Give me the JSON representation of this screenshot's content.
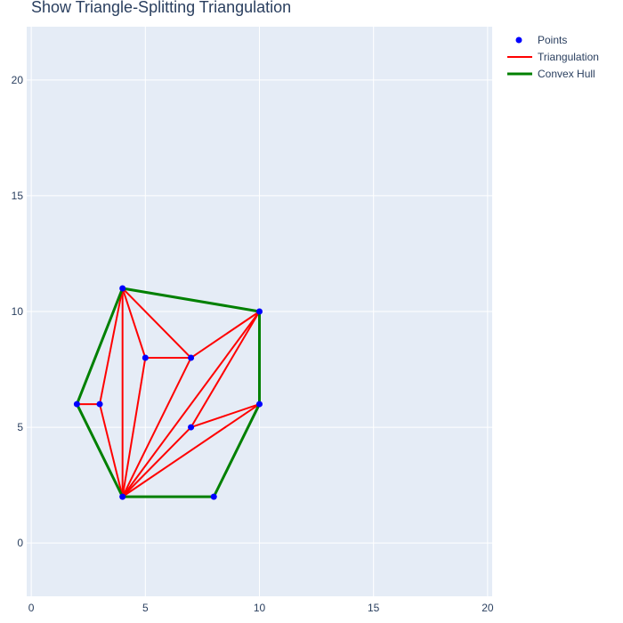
{
  "chart_data": {
    "type": "scatter",
    "title": "Show Triangle-Splitting Triangulation",
    "xlabel": "",
    "ylabel": "",
    "xlim": [
      -0.2,
      20.2
    ],
    "ylim": [
      -2.3,
      22.3
    ],
    "x_ticks": [
      0,
      5,
      10,
      15,
      20
    ],
    "y_ticks": [
      0,
      5,
      10,
      15,
      20
    ],
    "grid": true,
    "legend_position": "top-right",
    "colors": {
      "plot_bg": "#e5ecf6",
      "grid": "#ffffff",
      "points": "#0000ff",
      "triangulation": "#ff0000",
      "hull": "#008000",
      "text": "#2a3f5f"
    },
    "series": [
      {
        "name": "Points",
        "kind": "markers",
        "x": [
          2,
          3,
          4,
          4,
          5,
          7,
          7,
          8,
          10,
          10
        ],
        "y": [
          6,
          6,
          2,
          11,
          8,
          8,
          5,
          2,
          6,
          10
        ]
      },
      {
        "name": "Triangulation",
        "kind": "segments",
        "segments": [
          [
            [
              2,
              6
            ],
            [
              3,
              6
            ]
          ],
          [
            [
              3,
              6
            ],
            [
              4,
              11
            ]
          ],
          [
            [
              3,
              6
            ],
            [
              4,
              2
            ]
          ],
          [
            [
              4,
              2
            ],
            [
              4,
              11
            ]
          ],
          [
            [
              4,
              11
            ],
            [
              5,
              8
            ]
          ],
          [
            [
              5,
              8
            ],
            [
              4,
              2
            ]
          ],
          [
            [
              5,
              8
            ],
            [
              7,
              8
            ]
          ],
          [
            [
              4,
              11
            ],
            [
              7,
              8
            ]
          ],
          [
            [
              7,
              8
            ],
            [
              4,
              2
            ]
          ],
          [
            [
              7,
              8
            ],
            [
              10,
              10
            ]
          ],
          [
            [
              4,
              11
            ],
            [
              10,
              10
            ]
          ],
          [
            [
              4,
              2
            ],
            [
              10,
              10
            ]
          ],
          [
            [
              7,
              5
            ],
            [
              10,
              10
            ]
          ],
          [
            [
              7,
              5
            ],
            [
              4,
              2
            ]
          ],
          [
            [
              7,
              5
            ],
            [
              10,
              6
            ]
          ],
          [
            [
              4,
              2
            ],
            [
              10,
              6
            ]
          ],
          [
            [
              8,
              2
            ],
            [
              10,
              6
            ]
          ]
        ]
      },
      {
        "name": "Convex Hull",
        "kind": "polygon",
        "x": [
          4,
          10,
          10,
          8,
          4,
          2,
          4
        ],
        "y": [
          11,
          10,
          6,
          2,
          2,
          6,
          11
        ]
      }
    ]
  }
}
